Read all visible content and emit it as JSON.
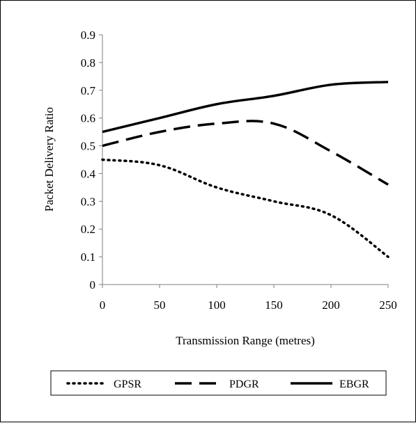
{
  "chart_data": {
    "type": "line",
    "title": "",
    "xlabel": "Transmission Range (metres)",
    "ylabel": "Packet Delivery Ratio",
    "x": [
      0,
      50,
      100,
      150,
      200,
      250
    ],
    "x_ticks": [
      "0",
      "50",
      "100",
      "150",
      "200",
      "250"
    ],
    "y_ticks": [
      "0",
      "0.1",
      "0.2",
      "0.3",
      "0.4",
      "0.5",
      "0.6",
      "0.7",
      "0.8",
      "0.9"
    ],
    "xlim": [
      0,
      250
    ],
    "ylim": [
      0,
      0.9
    ],
    "grid": false,
    "legend_position": "bottom",
    "series": [
      {
        "name": "GPSR",
        "style": "dotted",
        "color": "#000000",
        "values": [
          0.45,
          0.43,
          0.35,
          0.3,
          0.25,
          0.1
        ]
      },
      {
        "name": "PDGR",
        "style": "dashed",
        "color": "#000000",
        "values": [
          0.5,
          0.55,
          0.58,
          0.58,
          0.48,
          0.36
        ]
      },
      {
        "name": "EBGR",
        "style": "solid",
        "color": "#000000",
        "values": [
          0.55,
          0.6,
          0.65,
          0.68,
          0.72,
          0.73
        ]
      }
    ]
  }
}
